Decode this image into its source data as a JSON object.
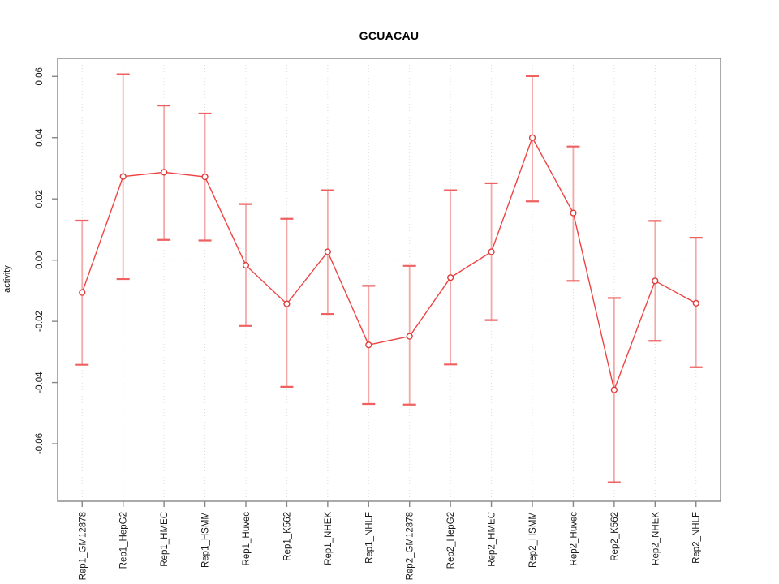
{
  "chart_data": {
    "type": "line",
    "title": "GCUACAU",
    "xlabel": "",
    "ylabel": "activity",
    "categories": [
      "Rep1_GM12878",
      "Rep1_HepG2",
      "Rep1_HMEC",
      "Rep1_HSMM",
      "Rep1_Huvec",
      "Rep1_K562",
      "Rep1_NHEK",
      "Rep1_NHLF",
      "Rep2_GM12878",
      "Rep2_HepG2",
      "Rep2_HMEC",
      "Rep2_HSMM",
      "Rep2_Huvec",
      "Rep2_K562",
      "Rep2_NHEK",
      "Rep2_NHLF"
    ],
    "values": [
      -0.0106,
      0.0273,
      0.0287,
      0.0272,
      -0.0017,
      -0.0143,
      0.0027,
      -0.0277,
      -0.0249,
      -0.0057,
      0.0027,
      0.04,
      0.0154,
      -0.0424,
      -0.0068,
      -0.0141
    ],
    "error_low": [
      -0.0342,
      -0.0062,
      0.0066,
      0.0064,
      -0.0215,
      -0.0414,
      -0.0176,
      -0.047,
      -0.0472,
      -0.0341,
      -0.0196,
      0.0192,
      -0.0068,
      -0.0726,
      -0.0264,
      -0.035
    ],
    "error_high": [
      0.0129,
      0.0607,
      0.0505,
      0.0479,
      0.0183,
      0.0135,
      0.0228,
      -0.0084,
      -0.0019,
      0.0228,
      0.0251,
      0.0601,
      0.0371,
      -0.0124,
      0.0128,
      0.0073
    ],
    "yticks": [
      -0.06,
      -0.04,
      -0.02,
      0.0,
      0.02,
      0.04,
      0.06
    ],
    "ytick_labels": [
      "-0.06",
      "-0.04",
      "-0.02",
      "0.00",
      "0.02",
      "0.04",
      "0.06"
    ],
    "ylim": [
      -0.0788,
      0.0659
    ],
    "grid": "vertical dotted per category, dotted zero line, legend none",
    "zero_line": 0.0,
    "colors": {
      "series_line": "#ee4444",
      "marker_stroke": "#e03b3b",
      "error_line": "#f5a8a8",
      "error_cap": "#ef6161",
      "frame": "#868686",
      "tick": "#868686",
      "grid_line": "#dcdcdc",
      "zero_line": "#d2d2d2",
      "tick_text": "#1a1a1a",
      "title_text": "#000000"
    }
  }
}
